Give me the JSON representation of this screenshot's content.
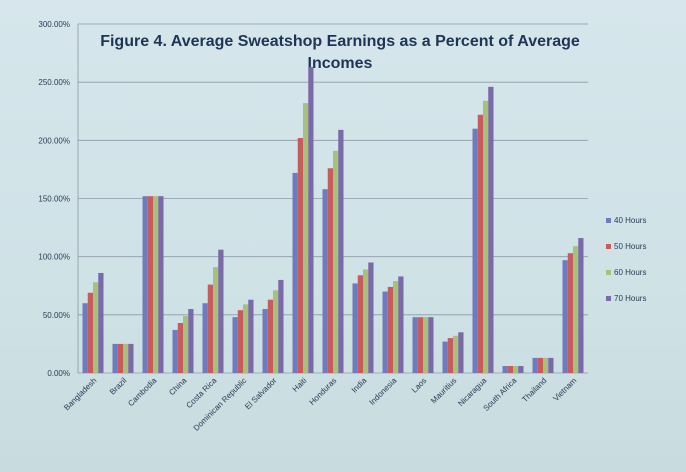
{
  "chart_data": {
    "type": "bar",
    "title": "Figure 4. Average Sweatshop Earnings as a Percent of Average Incomes",
    "title_lines": [
      "Figure 4. Average Sweatshop Earnings as a Percent of Average",
      "Incomes"
    ],
    "categories": [
      "Bangladesh",
      "Brazil",
      "Cambodia",
      "China",
      "Costa Rica",
      "Dominican Republic",
      "El Salvador",
      "Haiti",
      "Honduras",
      "India",
      "Indonesia",
      "Laos",
      "Mauritius",
      "Nicaragua",
      "South Africa",
      "Thailand",
      "Vietnam"
    ],
    "series": [
      {
        "name": "40 Hours",
        "color": "#6f7bbf",
        "values": [
          60,
          25,
          152,
          37,
          60,
          48,
          55,
          172,
          158,
          77,
          70,
          48,
          27,
          210,
          6,
          13,
          97
        ]
      },
      {
        "name": "50 Hours",
        "color": "#c75c5c",
        "values": [
          69,
          25,
          152,
          43,
          76,
          54,
          63,
          202,
          176,
          84,
          74,
          48,
          30,
          222,
          6,
          13,
          103
        ]
      },
      {
        "name": "60 Hours",
        "color": "#a7c07a",
        "values": [
          78,
          25,
          152,
          49,
          91,
          59,
          71,
          232,
          191,
          89,
          79,
          48,
          32,
          234,
          6,
          13,
          109
        ]
      },
      {
        "name": "70 Hours",
        "color": "#7b6aa8",
        "values": [
          86,
          25,
          152,
          55,
          106,
          63,
          80,
          263,
          209,
          95,
          83,
          48,
          35,
          246,
          6,
          13,
          116
        ]
      }
    ],
    "ylim": [
      0,
      300
    ],
    "yticks": [
      0,
      50,
      100,
      150,
      200,
      250,
      300
    ],
    "ytick_labels": [
      "0.00%",
      "50.00%",
      "100.00%",
      "150.00%",
      "200.00%",
      "250.00%",
      "300.00%"
    ],
    "grid": true,
    "legend_position": "right"
  }
}
